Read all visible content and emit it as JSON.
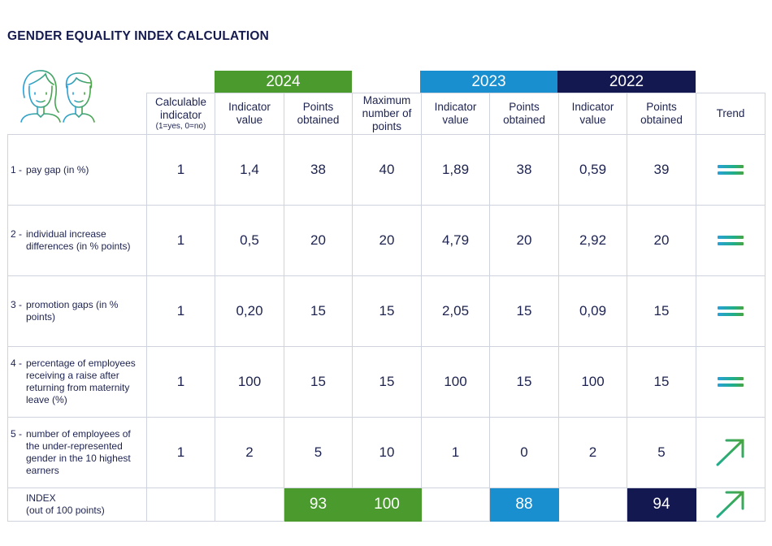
{
  "title": "GENDER EQUALITY INDEX CALCULATION",
  "years": {
    "y2024": "2024",
    "y2023": "2023",
    "y2022": "2022"
  },
  "colors": {
    "y2024": "#4a9a2e",
    "y2023": "#1a8fd0",
    "y2022": "#141850"
  },
  "headers": {
    "calculable": "Calculable indicator",
    "calculable_note": "(1=yes, 0=no)",
    "indicator_value": "Indicator value",
    "points_obtained": "Points obtained",
    "maximum": "Maximum number of points",
    "trend": "Trend"
  },
  "rows": [
    {
      "num": "1 -",
      "label": "pay gap (in %)",
      "calculable": "1",
      "v2024": "1,4",
      "p2024": "38",
      "max": "40",
      "v2023": "1,89",
      "p2023": "38",
      "v2022": "0,59",
      "p2022": "39",
      "trend": "equal-icon"
    },
    {
      "num": "2 -",
      "label": "individual increase differences (in % points)",
      "calculable": "1",
      "v2024": "0,5",
      "p2024": "20",
      "max": "20",
      "v2023": "4,79",
      "p2023": "20",
      "v2022": "2,92",
      "p2022": "20",
      "trend": "equal-icon"
    },
    {
      "num": "3 -",
      "label": "promotion gaps (in % points)",
      "calculable": "1",
      "v2024": "0,20",
      "p2024": "15",
      "max": "15",
      "v2023": "2,05",
      "p2023": "15",
      "v2022": "0,09",
      "p2022": "15",
      "trend": "equal-icon"
    },
    {
      "num": "4 -",
      "label": "percentage of employees receiving a raise after returning from maternity leave (%)",
      "calculable": "1",
      "v2024": "100",
      "p2024": "15",
      "max": "15",
      "v2023": "100",
      "p2023": "15",
      "v2022": "100",
      "p2022": "15",
      "trend": "equal-icon"
    },
    {
      "num": "5 -",
      "label": "number of employees of the under-represented gender in the 10 highest earners",
      "calculable": "1",
      "v2024": "2",
      "p2024": "5",
      "max": "10",
      "v2023": "1",
      "p2023": "0",
      "v2022": "2",
      "p2022": "5",
      "trend": "up-arrow-icon"
    }
  ],
  "index": {
    "label": "INDEX",
    "sublabel": "(out of 100 points)",
    "p2024": "93",
    "max": "100",
    "p2023": "88",
    "p2022": "94",
    "trend": "up-arrow-icon"
  }
}
